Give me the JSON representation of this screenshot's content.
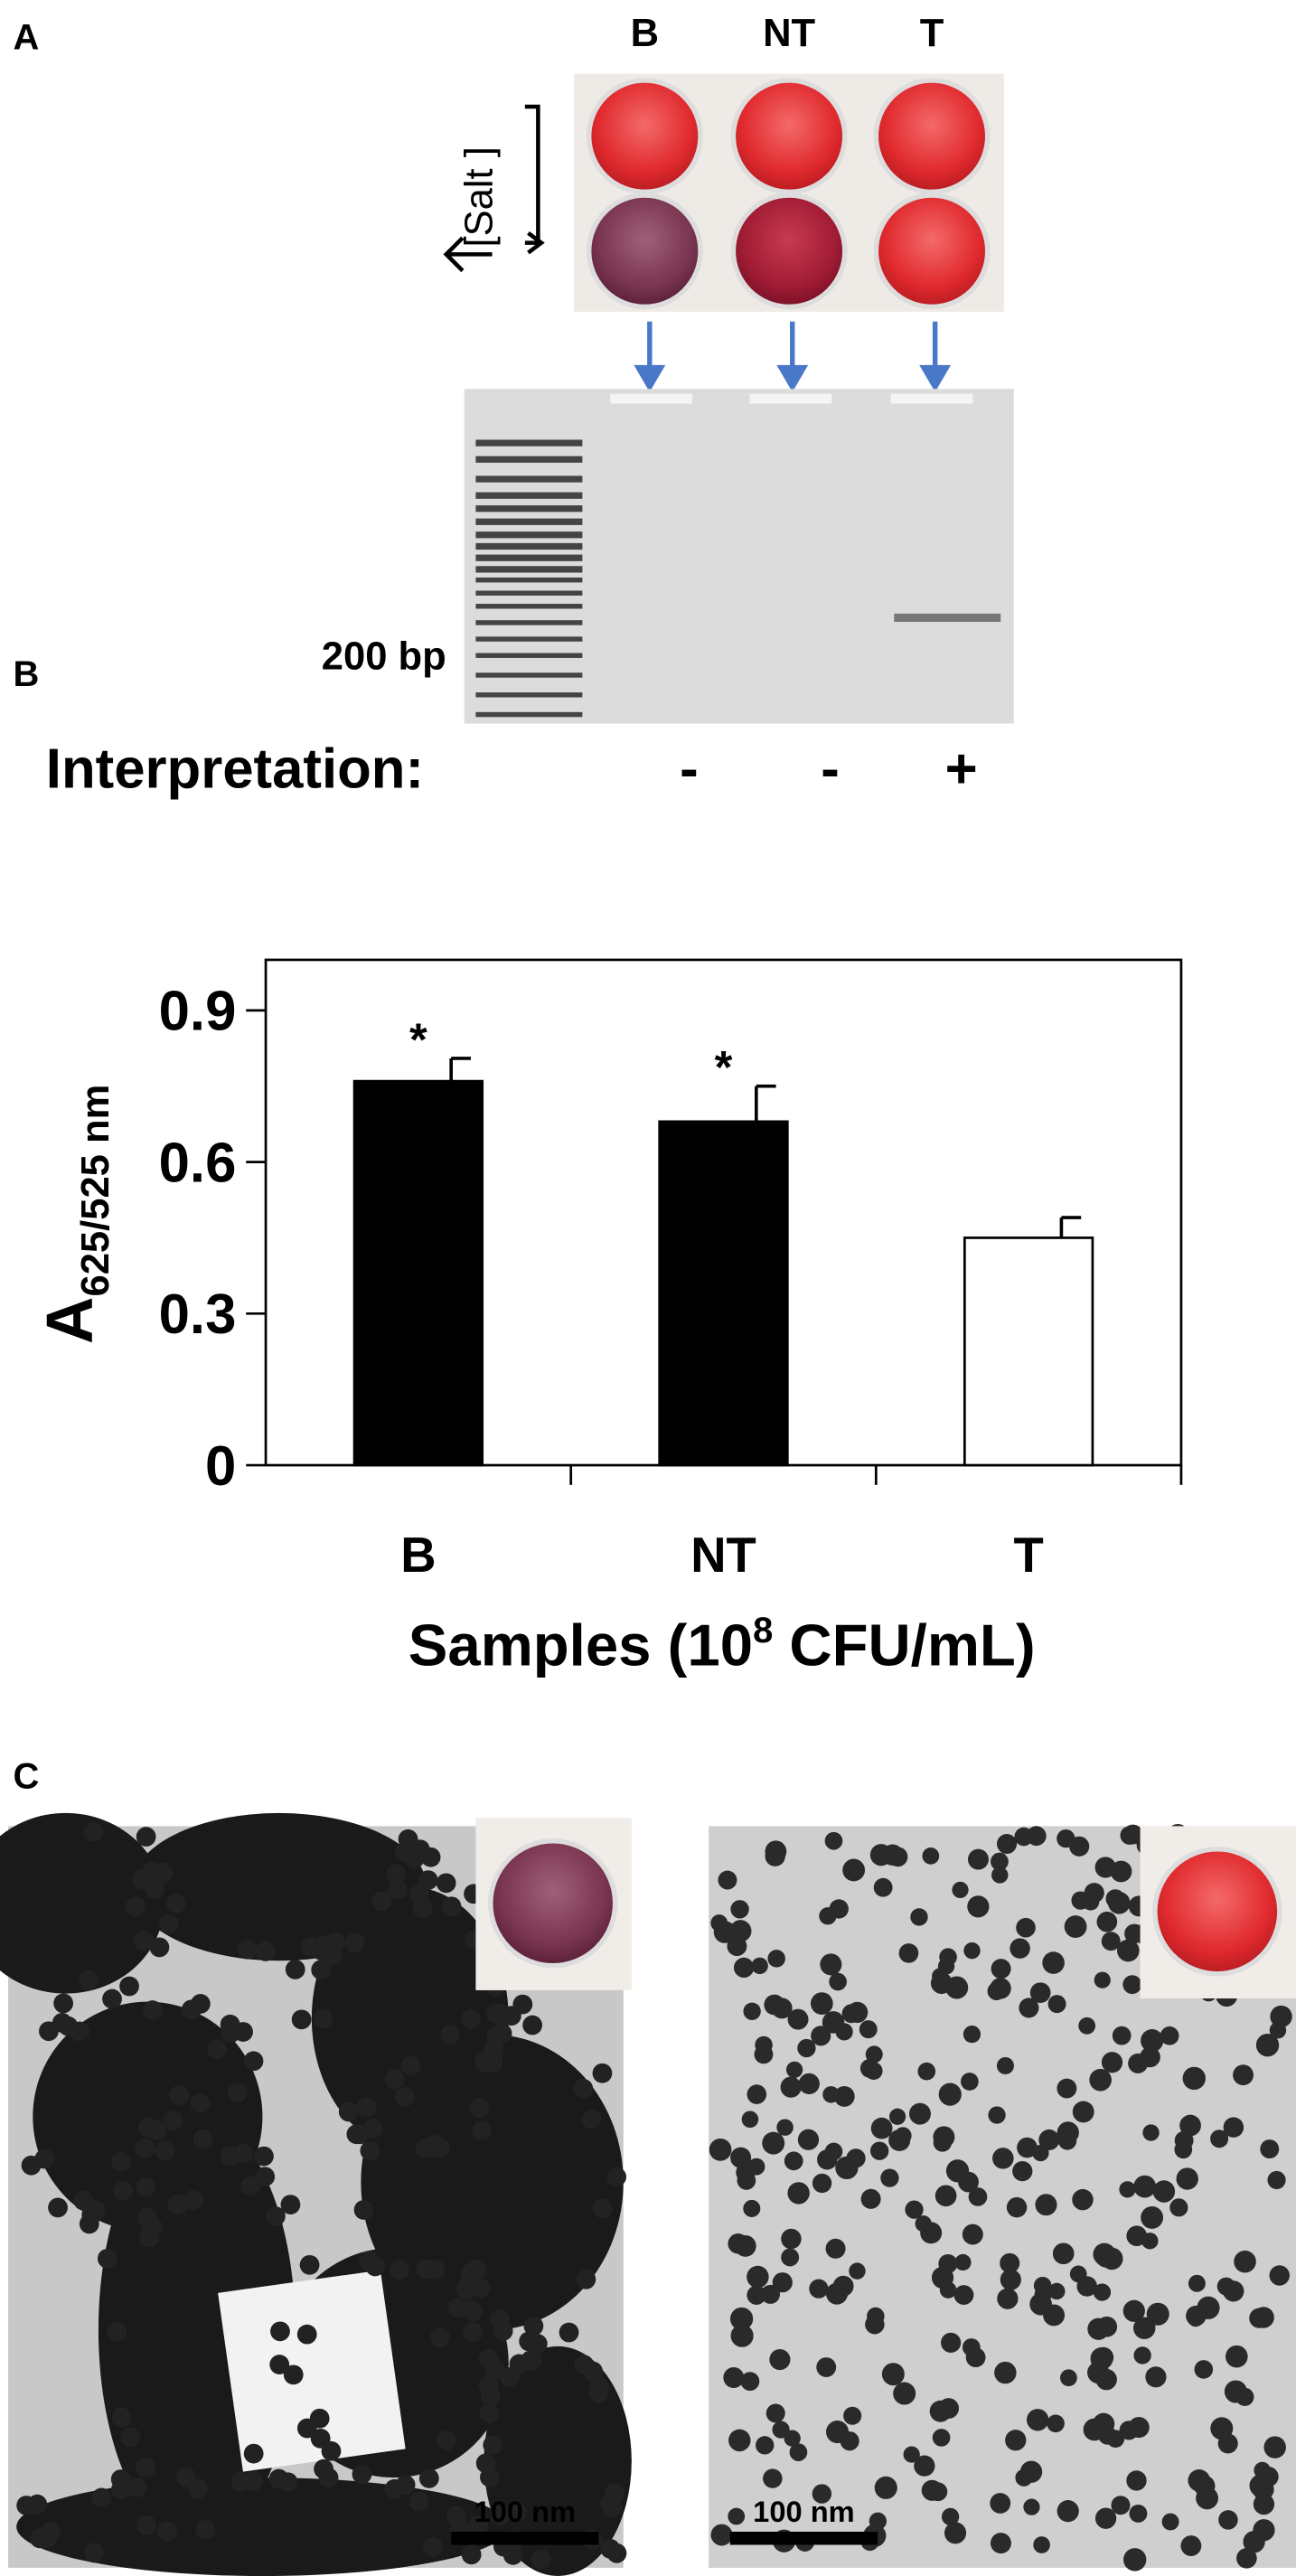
{
  "panel_labels": [
    "A",
    "B",
    "C"
  ],
  "panel_a": {
    "columns": [
      "B",
      "NT",
      "T"
    ],
    "salt_label": "[Salt ]",
    "size_marker": "200 bp",
    "interpretation_label": "Interpretation:",
    "interpretation": [
      "-",
      "-",
      "+"
    ]
  },
  "chart_data": {
    "type": "bar",
    "categories": [
      "B",
      "NT",
      "T"
    ],
    "values": [
      0.76,
      0.68,
      0.45
    ],
    "errors": [
      0.045,
      0.07,
      0.04
    ],
    "colors": [
      "#000000",
      "#000000",
      "#ffffff"
    ],
    "significance": [
      "*",
      "*",
      null
    ],
    "ylabel": {
      "main": "A",
      "sub": "625/525 nm"
    },
    "xlabel": {
      "before": "Samples (10",
      "sup": "8",
      "after": " CFU/mL)"
    },
    "ylim": [
      0,
      1
    ],
    "yticks": [
      0,
      0.3,
      0.6,
      0.9
    ],
    "grid": false
  },
  "panel_c": {
    "scale_bars": [
      "100 nm",
      "100 nm"
    ]
  }
}
